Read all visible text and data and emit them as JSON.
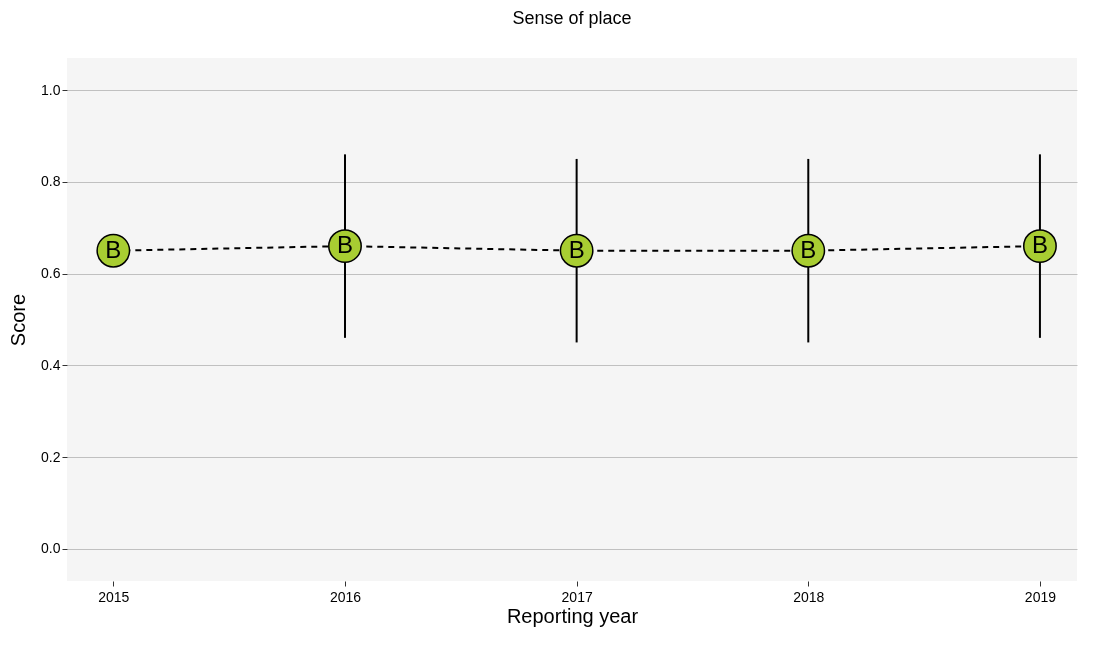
{
  "chart_data": {
    "type": "line",
    "title": "Sense of place",
    "xlabel": "Reporting year",
    "ylabel": "Score",
    "x": [
      2015,
      2016,
      2017,
      2018,
      2019
    ],
    "series": [
      {
        "color": "#a8cd32",
        "values": [
          0.65,
          0.66,
          0.65,
          0.65,
          0.66
        ],
        "errors": [
          null,
          [
            0.46,
            0.86
          ],
          [
            0.45,
            0.85
          ],
          [
            0.45,
            0.85
          ],
          [
            0.46,
            0.86
          ]
        ],
        "value_labels": [
          "B",
          "B",
          "B",
          "B",
          "B"
        ]
      }
    ],
    "xlim": [
      2014.8,
      2019.16
    ],
    "xticks": [
      2015,
      2016,
      2017,
      2018,
      2019
    ],
    "ylim": [
      -0.07,
      1.07
    ],
    "yticks": [
      {
        "value": 0,
        "label": "0.0"
      },
      {
        "value": 0.2,
        "label": "0.2"
      },
      {
        "value": 0.4,
        "label": "0.4"
      },
      {
        "value": 0.6,
        "label": "0.6"
      },
      {
        "value": 0.8,
        "label": "0.8"
      },
      {
        "value": 1,
        "label": "1.0"
      }
    ],
    "grid": "y",
    "marker": "circle",
    "line_style": "dashed"
  }
}
